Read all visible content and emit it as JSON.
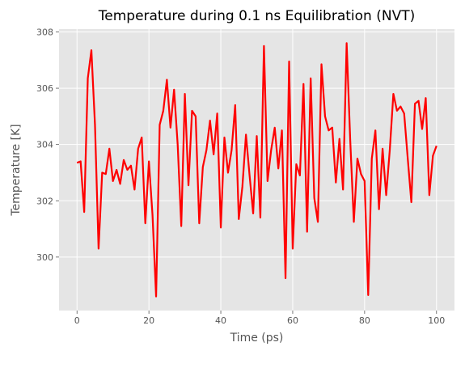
{
  "chart_data": {
    "type": "line",
    "title": "Temperature during 0.1 ns Equilibration (NVT)",
    "xlabel": "Time (ps)",
    "ylabel": "Temperature [K]",
    "xlim": [
      -5,
      105
    ],
    "ylim": [
      298.1,
      308.1
    ],
    "xticks": [
      0,
      20,
      40,
      60,
      80,
      100
    ],
    "yticks": [
      300,
      302,
      304,
      306,
      308
    ],
    "grid": true,
    "line_color": "#ff0000",
    "background_color": "#e5e5e5",
    "series": [
      {
        "x": [
          0,
          1,
          2,
          3,
          4,
          5,
          6,
          7,
          8,
          9,
          10,
          11,
          12,
          13,
          14,
          15,
          16,
          17,
          18,
          19,
          20,
          21,
          22,
          23,
          24,
          25,
          26,
          27,
          28,
          29,
          30,
          31,
          32,
          33,
          34,
          35,
          36,
          37,
          38,
          39,
          40,
          41,
          42,
          43,
          44,
          45,
          46,
          47,
          48,
          49,
          50,
          51,
          52,
          53,
          54,
          55,
          56,
          57,
          58,
          59,
          60,
          61,
          62,
          63,
          64,
          65,
          66,
          67,
          68,
          69,
          70,
          71,
          72,
          73,
          74,
          75,
          76,
          77,
          78,
          79,
          80,
          81,
          82,
          83,
          84,
          85,
          86,
          87,
          88,
          89,
          90,
          91,
          92,
          93,
          94,
          95,
          96,
          97,
          98,
          99,
          100
        ],
        "values": [
          303.35,
          303.4,
          301.6,
          306.35,
          307.35,
          304.7,
          300.3,
          303.0,
          302.95,
          303.85,
          302.7,
          303.1,
          302.6,
          303.45,
          303.1,
          303.25,
          302.4,
          303.85,
          304.25,
          301.2,
          303.4,
          301.5,
          298.6,
          304.7,
          305.2,
          306.3,
          304.6,
          305.95,
          304.0,
          301.1,
          305.8,
          302.55,
          305.2,
          305.0,
          301.2,
          303.2,
          303.8,
          304.85,
          303.65,
          305.1,
          301.05,
          304.25,
          303.0,
          303.8,
          305.4,
          301.35,
          302.5,
          304.35,
          302.9,
          301.55,
          304.3,
          301.4,
          307.5,
          302.7,
          303.8,
          304.6,
          303.15,
          304.5,
          299.25,
          306.95,
          300.3,
          303.3,
          302.9,
          306.15,
          300.9,
          306.35,
          302.1,
          301.25,
          306.85,
          305.0,
          304.5,
          304.6,
          302.65,
          304.2,
          302.4,
          307.6,
          304.15,
          301.25,
          303.5,
          302.95,
          302.7,
          298.65,
          303.5,
          304.5,
          301.7,
          303.85,
          302.2,
          303.8,
          305.8,
          305.2,
          305.35,
          305.1,
          303.5,
          301.95,
          305.45,
          305.55,
          304.55,
          305.65,
          302.2,
          303.6,
          303.95
        ]
      }
    ]
  }
}
